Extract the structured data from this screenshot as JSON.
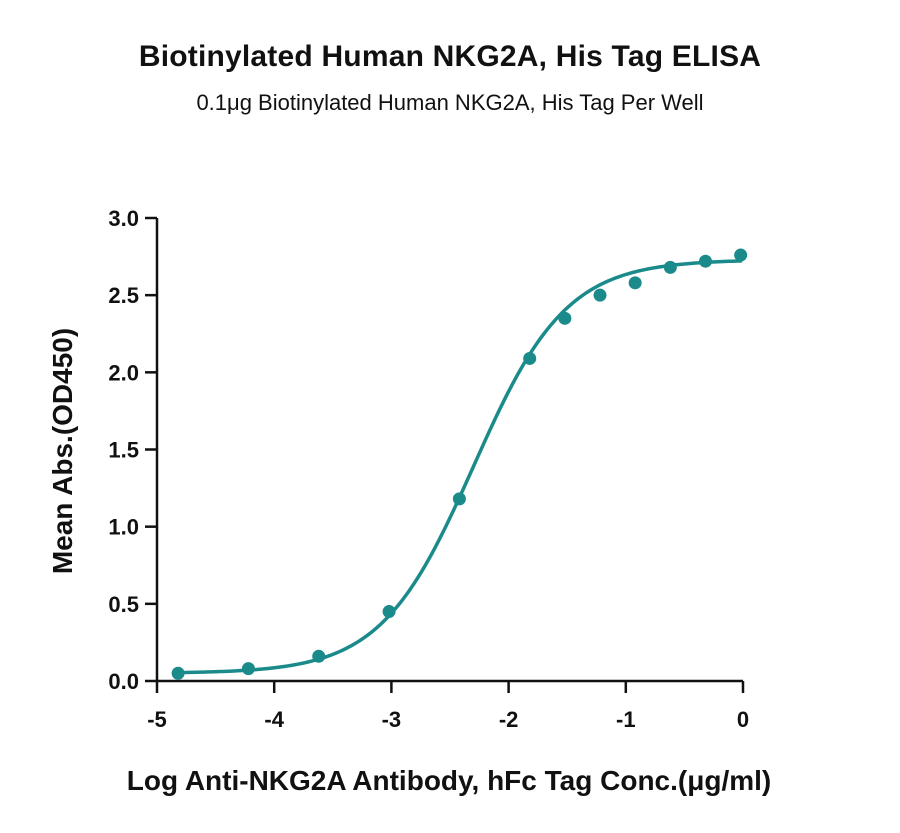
{
  "chart_data": {
    "type": "line",
    "title": "Biotinylated Human NKG2A, His Tag ELISA",
    "subtitle": "0.1μg Biotinylated Human NKG2A, His Tag Per Well",
    "xlabel": "Log Anti-NKG2A Antibody, hFc Tag Conc.(μg/ml)",
    "ylabel": "Mean Abs.(OD450)",
    "xlim": [
      -5,
      0
    ],
    "ylim": [
      0,
      3.0
    ],
    "x_ticks": [
      -5,
      -4,
      -3,
      -2,
      -1,
      0
    ],
    "x_tick_labels": [
      "-5",
      "-4",
      "-3",
      "-2",
      "-1",
      "0"
    ],
    "y_ticks": [
      0,
      0.5,
      1.0,
      1.5,
      2.0,
      2.5,
      3.0
    ],
    "y_tick_labels": [
      "0.0",
      "0.5",
      "1.0",
      "1.5",
      "2.0",
      "2.5",
      "3.0"
    ],
    "grid": false,
    "color": "#1a8a8a",
    "series": [
      {
        "x": [
          -4.82,
          -4.22,
          -3.62,
          -3.02,
          -2.42,
          -1.82,
          -1.52,
          -1.22,
          -0.92,
          -0.62,
          -0.32,
          -0.02
        ],
        "y": [
          0.05,
          0.08,
          0.16,
          0.45,
          1.18,
          2.09,
          2.35,
          2.5,
          2.58,
          2.68,
          2.72,
          2.76
        ]
      }
    ],
    "fit": {
      "model": "4PL",
      "bottom": 0.05,
      "top": 2.73,
      "log_ec50": -2.3,
      "hill": 1.1
    }
  }
}
